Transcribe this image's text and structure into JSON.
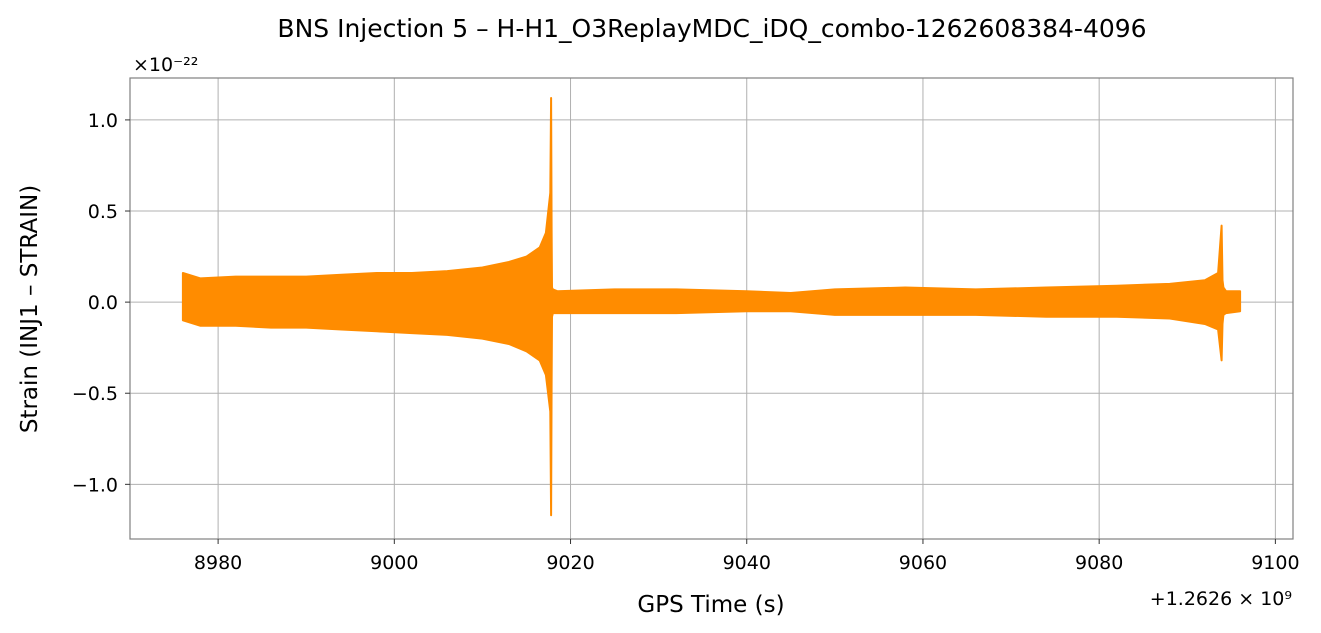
{
  "chart_data": {
    "type": "line",
    "title": "BNS Injection 5 – H-H1_O3ReplayMDC_iDQ_combo-1262608384-4096",
    "xlabel": "GPS Time (s)",
    "ylabel": "Strain (INJ1 – STRAIN)",
    "x_offset_label": "+1.2626 × 10⁹",
    "y_scale_label": "×10⁻²²",
    "xlim": [
      8970,
      9102
    ],
    "ylim": [
      -1.3,
      1.23
    ],
    "x_ticks": [
      8980,
      9000,
      9020,
      9040,
      9060,
      9080,
      9100
    ],
    "y_ticks": [
      -1.0,
      -0.5,
      0.0,
      0.5,
      1.0
    ],
    "x_tick_labels": [
      "8980",
      "9000",
      "9020",
      "9040",
      "9060",
      "9080",
      "9100"
    ],
    "y_tick_labels": [
      "−1.0",
      "−0.5",
      "0.0",
      "0.5",
      "1.0"
    ],
    "grid": true,
    "series": [
      {
        "color": "#ff8c00",
        "x": [
          8976.0,
          8978.0,
          8982.0,
          8986.0,
          8990.0,
          8994.0,
          8998.0,
          9002.0,
          9006.0,
          9010.0,
          9013.0,
          9015.0,
          9016.5,
          9017.2,
          9017.7,
          9017.8,
          9017.85,
          9017.9,
          9018.0,
          9018.5,
          9025.0,
          9032.0,
          9040.0,
          9045.0,
          9050.0,
          9058.0,
          9066.0,
          9074.0,
          9082.0,
          9088.0,
          9092.0,
          9093.5,
          9093.9,
          9094.0,
          9094.1,
          9094.4,
          9096.0
        ],
        "upper": [
          0.16,
          0.13,
          0.14,
          0.14,
          0.14,
          0.15,
          0.16,
          0.16,
          0.17,
          0.19,
          0.22,
          0.25,
          0.3,
          0.38,
          0.6,
          1.12,
          0.4,
          0.08,
          0.07,
          0.06,
          0.07,
          0.07,
          0.06,
          0.05,
          0.07,
          0.08,
          0.07,
          0.08,
          0.09,
          0.1,
          0.12,
          0.16,
          0.42,
          0.12,
          0.08,
          0.06,
          0.06
        ],
        "lower": [
          -0.1,
          -0.13,
          -0.13,
          -0.14,
          -0.14,
          -0.15,
          -0.16,
          -0.17,
          -0.18,
          -0.2,
          -0.23,
          -0.27,
          -0.32,
          -0.4,
          -0.6,
          -1.17,
          -0.45,
          -0.08,
          -0.06,
          -0.06,
          -0.06,
          -0.06,
          -0.05,
          -0.05,
          -0.07,
          -0.07,
          -0.07,
          -0.08,
          -0.08,
          -0.09,
          -0.12,
          -0.15,
          -0.32,
          -0.12,
          -0.07,
          -0.06,
          -0.05
        ]
      }
    ]
  }
}
